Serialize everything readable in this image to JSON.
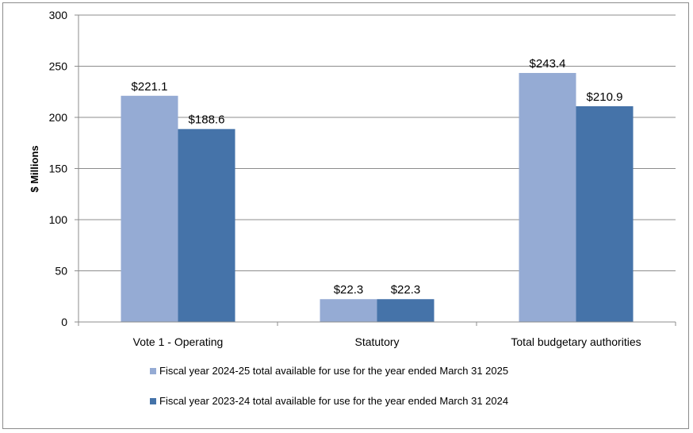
{
  "chart_data": {
    "type": "bar",
    "categories": [
      "Vote 1 - Operating",
      "Statutory",
      "Total budgetary authorities"
    ],
    "series": [
      {
        "name": "Fiscal year 2024-25 total available for use for the year ended March 31 2025",
        "values": [
          221.1,
          22.3,
          243.4
        ],
        "labels": [
          "$221.1",
          "$22.3",
          "$243.4"
        ],
        "color": "#95abd4"
      },
      {
        "name": "Fiscal year 2023-24 total available for use for the year ended March 31 2024",
        "values": [
          188.6,
          22.3,
          210.9
        ],
        "labels": [
          "$188.6",
          "$22.3",
          "$210.9"
        ],
        "color": "#4573a9"
      }
    ],
    "ylabel": "$ Millions",
    "xlabel": "",
    "ylim": [
      0,
      300
    ],
    "yticks": [
      0,
      50,
      100,
      150,
      200,
      250,
      300
    ],
    "grid": true,
    "legend_position": "bottom"
  },
  "colors": {
    "gridline": "#8c8c8c",
    "axis": "#8c8c8c"
  }
}
